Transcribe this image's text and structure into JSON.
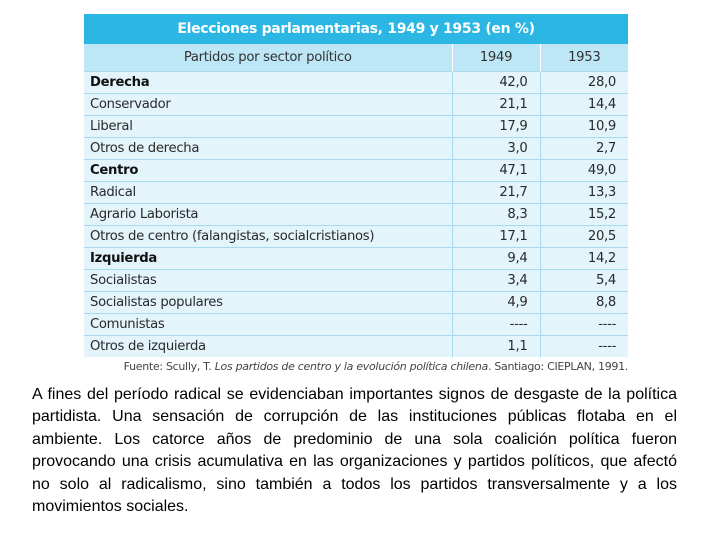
{
  "table": {
    "title": "Elecciones parlamentarias, 1949 y 1953 (en %)",
    "headers": [
      "Partidos por sector político",
      "1949",
      "1953"
    ],
    "rows": [
      {
        "label": "Derecha",
        "v1949": "42,0",
        "v1953": "28,0",
        "group": true
      },
      {
        "label": "Conservador",
        "v1949": "21,1",
        "v1953": "14,4",
        "group": false
      },
      {
        "label": "Liberal",
        "v1949": "17,9",
        "v1953": "10,9",
        "group": false
      },
      {
        "label": "Otros de derecha",
        "v1949": "3,0",
        "v1953": "2,7",
        "group": false
      },
      {
        "label": "Centro",
        "v1949": "47,1",
        "v1953": "49,0",
        "group": true
      },
      {
        "label": "Radical",
        "v1949": "21,7",
        "v1953": "13,3",
        "group": false
      },
      {
        "label": "Agrario Laborista",
        "v1949": "8,3",
        "v1953": "15,2",
        "group": false
      },
      {
        "label": "Otros de centro (falangistas, socialcristianos)",
        "v1949": "17,1",
        "v1953": "20,5",
        "group": false
      },
      {
        "label": "Izquierda",
        "v1949": "9,4",
        "v1953": "14,2",
        "group": true
      },
      {
        "label": "Socialistas",
        "v1949": "3,4",
        "v1953": "5,4",
        "group": false
      },
      {
        "label": "Socialistas populares",
        "v1949": "4,9",
        "v1953": "8,8",
        "group": false
      },
      {
        "label": "Comunistas",
        "v1949": "----",
        "v1953": "----",
        "group": false
      },
      {
        "label": "Otros de izquierda",
        "v1949": "1,1",
        "v1953": "----",
        "group": false
      }
    ],
    "source": {
      "prefix": "Fuente: Scully, T. ",
      "title": "Los partidos de centro y la evolución política chilena",
      "suffix": ". Santiago: CIEPLAN, 1991."
    },
    "colors": {
      "title_bg": "#2bb6e4",
      "header_bg": "#bde7f6",
      "row_bg": "#e3f4fb"
    }
  },
  "paragraph": "A fines del período radical se evidenciaban importantes signos de desgaste de la política partidista. Una sensación de corrupción de las instituciones públicas flotaba en el ambiente. Los catorce años de predominio de una sola coalición política fueron provocando una crisis acumulativa en las organizaciones y partidos políticos, que afectó no solo al radicalismo, sino también a todos los partidos transversalmente y a los movimientos sociales."
}
